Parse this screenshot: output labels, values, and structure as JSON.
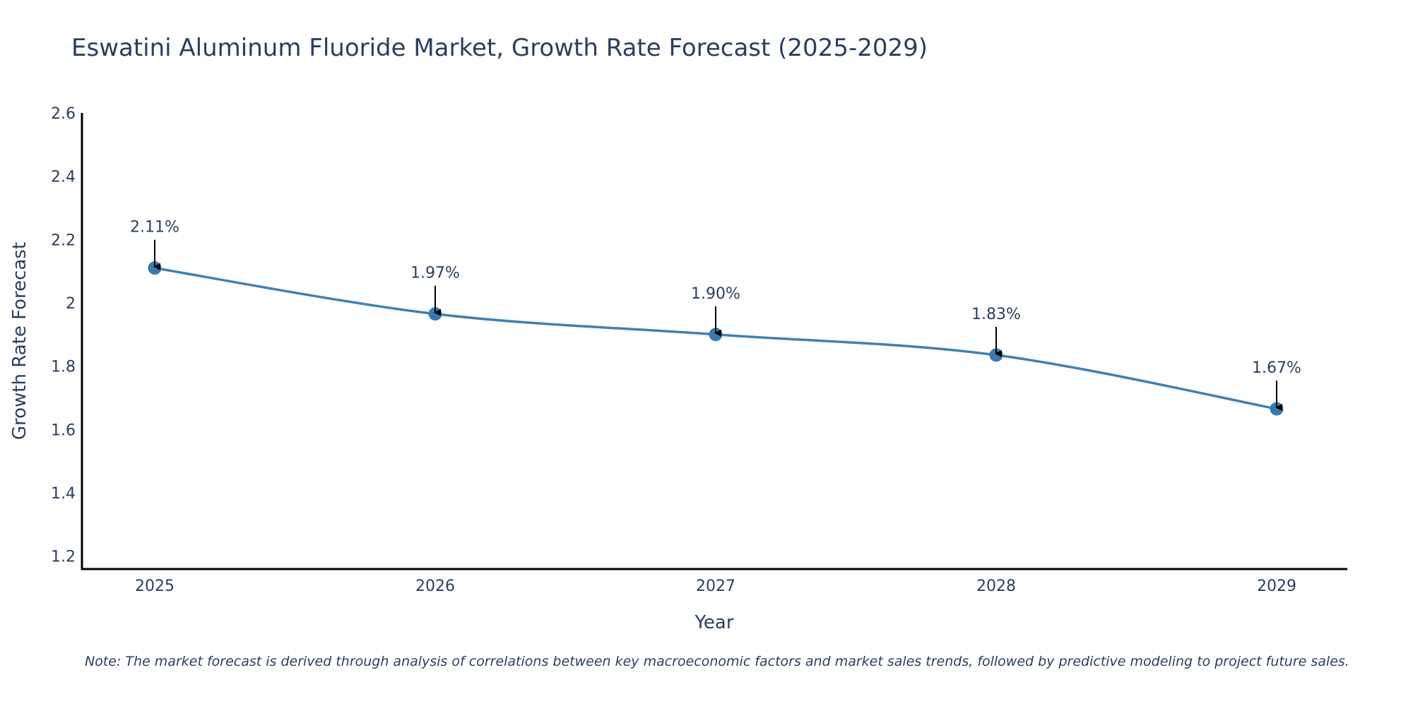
{
  "chart_data": {
    "type": "line",
    "title": "Eswatini Aluminum Fluoride Market, Growth Rate Forecast (2025-2029)",
    "xlabel": "Year",
    "ylabel": "Growth Rate Forecast",
    "categories": [
      "2025",
      "2026",
      "2027",
      "2028",
      "2029"
    ],
    "values": [
      2.11,
      1.965,
      1.9,
      1.835,
      1.665
    ],
    "data_labels": [
      "2.11%",
      "1.97%",
      "1.90%",
      "1.83%",
      "1.67%"
    ],
    "ylim": [
      1.17,
      2.6
    ],
    "yticks": [
      1.2,
      1.4,
      1.6,
      1.8,
      2.0,
      2.2,
      2.4,
      2.6
    ],
    "ytick_labels": [
      "1.2",
      "1.4",
      "1.6",
      "1.8",
      "2",
      "2.2",
      "2.4",
      "2.6"
    ],
    "grid": false,
    "line_color": "#4080b0",
    "marker_color": "#3a7ab3",
    "arrow_color": "#000000",
    "note": "Note: The market forecast is derived through analysis of correlations between key macroeconomic factors and market sales trends, followed by predictive modeling to project future sales."
  }
}
